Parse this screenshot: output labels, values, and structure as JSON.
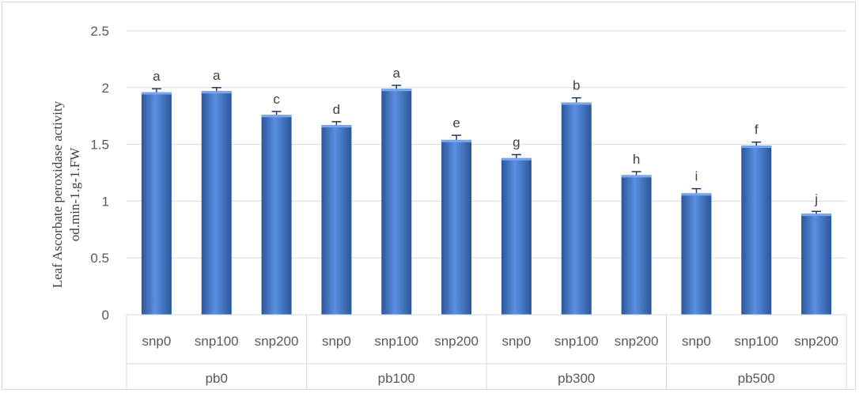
{
  "chart_data": {
    "type": "bar",
    "title": "",
    "ylabel_lines": [
      "Leaf Ascorbate peroxidase activity",
      "od.min-1.g-1.FW"
    ],
    "ylim": [
      0,
      2.5
    ],
    "yticks": [
      0,
      0.5,
      1,
      1.5,
      2,
      2.5
    ],
    "ytick_labels": [
      "0",
      "0.5",
      "1",
      "1.5",
      "2",
      "2.5"
    ],
    "groups": [
      {
        "name": "pb0",
        "bars": [
          {
            "category": "snp0",
            "value": 1.96,
            "error": 0.03,
            "letter": "a"
          },
          {
            "category": "snp100",
            "value": 1.97,
            "error": 0.03,
            "letter": "a"
          },
          {
            "category": "snp200",
            "value": 1.76,
            "error": 0.03,
            "letter": "c"
          }
        ]
      },
      {
        "name": "pb100",
        "bars": [
          {
            "category": "snp0",
            "value": 1.67,
            "error": 0.03,
            "letter": "d"
          },
          {
            "category": "snp100",
            "value": 1.99,
            "error": 0.03,
            "letter": "a"
          },
          {
            "category": "snp200",
            "value": 1.54,
            "error": 0.04,
            "letter": "e"
          }
        ]
      },
      {
        "name": "pb300",
        "bars": [
          {
            "category": "snp0",
            "value": 1.38,
            "error": 0.03,
            "letter": "g"
          },
          {
            "category": "snp100",
            "value": 1.87,
            "error": 0.04,
            "letter": "b"
          },
          {
            "category": "snp200",
            "value": 1.23,
            "error": 0.03,
            "letter": "h"
          }
        ]
      },
      {
        "name": "pb500",
        "bars": [
          {
            "category": "snp0",
            "value": 1.07,
            "error": 0.04,
            "letter": "i"
          },
          {
            "category": "snp100",
            "value": 1.49,
            "error": 0.03,
            "letter": "f"
          },
          {
            "category": "snp200",
            "value": 0.89,
            "error": 0.02,
            "letter": "j"
          }
        ]
      }
    ],
    "grid": true,
    "legend": "none",
    "colors": {
      "bar": "#4472c4",
      "bar_light": "#5b8fe0",
      "bar_dark": "#2b579a",
      "grid": "#d9d9d9"
    }
  }
}
